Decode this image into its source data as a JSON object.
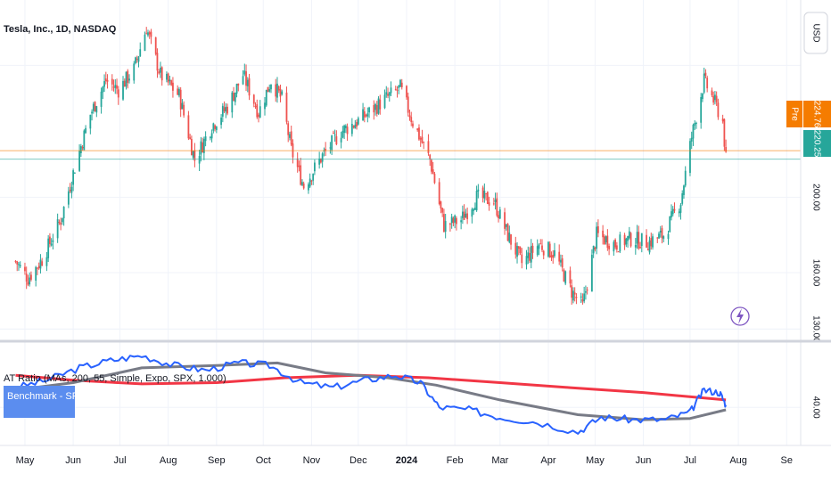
{
  "header": {
    "symbol_title": "Tesla, Inc., 1D, NASDAQ",
    "currency": "USD"
  },
  "indicator": {
    "label": "AT Ratio (MAs, 200, 55, Simple, Expo, SPX, 1.000)",
    "badge": "Benchmark - SP:SPX"
  },
  "price_labels": {
    "pre_tag": "Pre",
    "pre_price": "224.76",
    "last_price": "220.25"
  },
  "colors": {
    "up": "#26a69a",
    "down": "#ef5350",
    "pre": "#f57c00",
    "last": "#26a69a",
    "ratio": "#2962ff",
    "ma_fast": "#f23645",
    "ma_slow": "#787b86",
    "badge_bg": "#5b8def"
  },
  "icons": {
    "alert": "lightning-bolt-icon"
  },
  "chart_data": [
    {
      "type": "candlestick",
      "title": "Tesla, Inc., 1D, NASDAQ",
      "x_ticks": [
        "May",
        "Jun",
        "Jul",
        "Aug",
        "Sep",
        "Oct",
        "Nov",
        "Dec",
        "2024",
        "Feb",
        "Mar",
        "Apr",
        "May",
        "Jun",
        "Jul",
        "Aug",
        "Se"
      ],
      "y_ticks": [
        "200.00",
        "160.00",
        "130.00"
      ],
      "y_range": [
        125,
        300
      ],
      "grid": true,
      "close_path": [
        [
          "2023-04-25",
          166
        ],
        [
          "2023-05-03",
          157
        ],
        [
          "2023-05-12",
          167
        ],
        [
          "2023-05-24",
          188
        ],
        [
          "2023-06-02",
          216
        ],
        [
          "2023-06-12",
          244
        ],
        [
          "2023-06-22",
          262
        ],
        [
          "2023-06-30",
          257
        ],
        [
          "2023-07-10",
          268
        ],
        [
          "2023-07-18",
          290
        ],
        [
          "2023-07-27",
          265
        ],
        [
          "2023-08-08",
          254
        ],
        [
          "2023-08-18",
          220
        ],
        [
          "2023-08-29",
          238
        ],
        [
          "2023-09-08",
          248
        ],
        [
          "2023-09-18",
          265
        ],
        [
          "2023-09-28",
          245
        ],
        [
          "2023-10-06",
          262
        ],
        [
          "2023-10-13",
          252
        ],
        [
          "2023-10-19",
          225
        ],
        [
          "2023-10-27",
          206
        ],
        [
          "2023-11-08",
          222
        ],
        [
          "2023-11-20",
          235
        ],
        [
          "2023-11-30",
          240
        ],
        [
          "2023-12-08",
          245
        ],
        [
          "2023-12-18",
          252
        ],
        [
          "2023-12-28",
          258
        ],
        [
          "2024-01-05",
          240
        ],
        [
          "2024-01-16",
          220
        ],
        [
          "2024-01-25",
          185
        ],
        [
          "2024-02-05",
          188
        ],
        [
          "2024-02-15",
          200
        ],
        [
          "2024-02-26",
          198
        ],
        [
          "2024-03-06",
          180
        ],
        [
          "2024-03-15",
          165
        ],
        [
          "2024-03-26",
          175
        ],
        [
          "2024-04-05",
          170
        ],
        [
          "2024-04-16",
          150
        ],
        [
          "2024-04-23",
          142
        ],
        [
          "2024-05-02",
          180
        ],
        [
          "2024-05-14",
          175
        ],
        [
          "2024-05-24",
          178
        ],
        [
          "2024-06-04",
          176
        ],
        [
          "2024-06-14",
          180
        ],
        [
          "2024-06-25",
          198
        ],
        [
          "2024-07-02",
          232
        ],
        [
          "2024-07-10",
          262
        ],
        [
          "2024-07-17",
          250
        ],
        [
          "2024-07-22",
          240
        ],
        [
          "2024-07-24",
          220
        ]
      ],
      "horizontal_lines": [
        {
          "label": "Pre",
          "value": 224.76
        },
        {
          "label": "Last",
          "value": 220.25
        }
      ]
    },
    {
      "type": "line",
      "title": "AT Ratio (MAs, 200, 55, Simple, Expo, SPX, 1.000)",
      "y_ticks": [
        "40.00"
      ],
      "y_range": [
        26,
        65
      ],
      "series": [
        {
          "name": "Benchmark - SP:SPX",
          "points": [
            [
              "2023-04-25",
              48
            ],
            [
              "2023-05-15",
              51
            ],
            [
              "2023-06-05",
              56
            ],
            [
              "2023-06-25",
              59
            ],
            [
              "2023-07-15",
              61
            ],
            [
              "2023-08-05",
              57
            ],
            [
              "2023-08-25",
              55
            ],
            [
              "2023-09-15",
              58
            ],
            [
              "2023-10-05",
              57
            ],
            [
              "2023-10-25",
              50
            ],
            [
              "2023-11-15",
              48
            ],
            [
              "2023-12-05",
              51
            ],
            [
              "2023-12-25",
              53
            ],
            [
              "2024-01-10",
              50
            ],
            [
              "2024-01-22",
              40
            ],
            [
              "2024-02-10",
              39
            ],
            [
              "2024-03-01",
              36
            ],
            [
              "2024-03-25",
              34
            ],
            [
              "2024-04-20",
              30
            ],
            [
              "2024-05-05",
              36
            ],
            [
              "2024-05-25",
              35
            ],
            [
              "2024-06-15",
              35
            ],
            [
              "2024-07-01",
              38
            ],
            [
              "2024-07-10",
              47
            ],
            [
              "2024-07-20",
              46
            ],
            [
              "2024-07-24",
              41
            ]
          ]
        },
        {
          "name": "",
          "points": [
            [
              "2023-04-25",
              53
            ],
            [
              "2023-06-01",
              51
            ],
            [
              "2023-07-15",
              49.5
            ],
            [
              "2023-09-01",
              50
            ],
            [
              "2023-10-15",
              52
            ],
            [
              "2023-12-01",
              53
            ],
            [
              "2024-01-15",
              52
            ],
            [
              "2024-03-01",
              50
            ],
            [
              "2024-04-15",
              48
            ],
            [
              "2024-06-01",
              46
            ],
            [
              "2024-07-24",
              43
            ]
          ]
        },
        {
          "name": "",
          "points": [
            [
              "2023-04-25",
              47
            ],
            [
              "2023-06-01",
              50
            ],
            [
              "2023-07-15",
              56
            ],
            [
              "2023-09-01",
              57
            ],
            [
              "2023-10-10",
              58
            ],
            [
              "2023-11-10",
              54
            ],
            [
              "2023-12-20",
              52
            ],
            [
              "2024-01-20",
              49
            ],
            [
              "2024-03-01",
              43
            ],
            [
              "2024-04-20",
              37
            ],
            [
              "2024-06-01",
              35
            ],
            [
              "2024-07-01",
              35.5
            ],
            [
              "2024-07-24",
              39
            ]
          ]
        }
      ]
    }
  ]
}
